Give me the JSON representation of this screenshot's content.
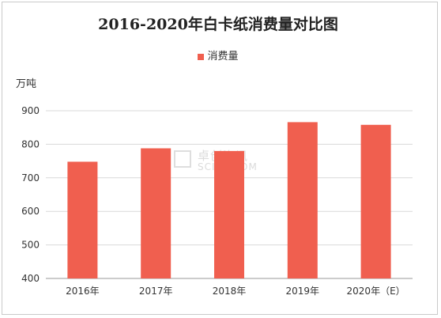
{
  "chart_data": {
    "type": "bar",
    "title": "2016-2020年白卡纸消费量对比图",
    "ylabel": "万吨",
    "categories": [
      "2016年",
      "2017年",
      "2018年",
      "2019年",
      "2020年（E）"
    ],
    "series": [
      {
        "name": "消费量",
        "values": [
          748,
          788,
          780,
          866,
          858
        ],
        "color": "#f05f4f"
      }
    ],
    "ylim": [
      400,
      900
    ],
    "yticks": [
      400,
      500,
      600,
      700,
      800,
      900
    ],
    "grid": true,
    "legend": "top-center"
  },
  "watermark": {
    "cn": "卓创资讯",
    "en": "SCI99.COM"
  }
}
